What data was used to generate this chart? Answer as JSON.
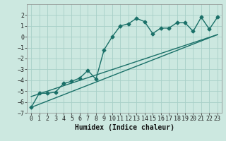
{
  "xlabel": "Humidex (Indice chaleur)",
  "ylabel": "",
  "bg_color": "#cce8e0",
  "grid_color": "#a8d0c8",
  "line_color": "#1a7068",
  "xlim": [
    -0.5,
    23.5
  ],
  "ylim": [
    -7,
    3
  ],
  "xticks": [
    0,
    1,
    2,
    3,
    4,
    5,
    6,
    7,
    8,
    9,
    10,
    11,
    12,
    13,
    14,
    15,
    16,
    17,
    18,
    19,
    20,
    21,
    22,
    23
  ],
  "yticks": [
    -7,
    -6,
    -5,
    -4,
    -3,
    -2,
    -1,
    0,
    1,
    2
  ],
  "line1_x": [
    0,
    1,
    2,
    3,
    4,
    5,
    6,
    7,
    8,
    9,
    10,
    11,
    12,
    13,
    14,
    15,
    16,
    17,
    18,
    19,
    20,
    21,
    22,
    23
  ],
  "line1_y": [
    -6.5,
    -5.2,
    -5.2,
    -5.1,
    -4.3,
    -4.1,
    -3.8,
    -3.1,
    -3.9,
    -1.2,
    0.0,
    1.0,
    1.2,
    1.7,
    1.4,
    0.3,
    0.8,
    0.8,
    1.3,
    1.3,
    0.5,
    1.8,
    0.7,
    1.8
  ],
  "line2_x": [
    0,
    23
  ],
  "line2_y": [
    -6.5,
    0.2
  ],
  "line3_x": [
    0,
    23
  ],
  "line3_y": [
    -5.5,
    0.2
  ],
  "marker": "D",
  "marker_size": 2.5,
  "line_width": 1.0,
  "tick_fontsize": 6,
  "xlabel_fontsize": 7
}
